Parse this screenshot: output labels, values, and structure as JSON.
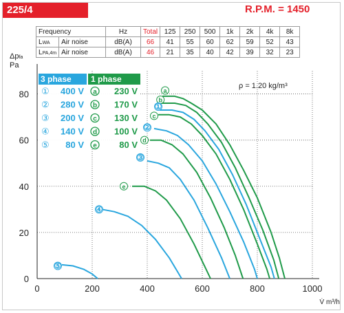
{
  "header": {
    "model": "225/4",
    "rpm": "R.P.M. = 1450"
  },
  "noise_table": {
    "header": [
      "Frequency",
      "Hz",
      "Total",
      "125",
      "250",
      "500",
      "1k",
      "2k",
      "4k",
      "8k"
    ],
    "rows": [
      {
        "label": "L",
        "sub": "WA",
        "desc": "Air noise",
        "unit": "dB(A)",
        "values": [
          "66",
          "41",
          "55",
          "60",
          "62",
          "59",
          "52",
          "43"
        ]
      },
      {
        "label": "L",
        "sub": "PA,4m",
        "desc": "Air noise",
        "unit": "dB(A)",
        "values": [
          "46",
          "21",
          "35",
          "40",
          "42",
          "39",
          "32",
          "23"
        ]
      }
    ]
  },
  "colors": {
    "blue": "#29a6de",
    "green": "#1f9a49",
    "red": "#e4202a",
    "grid": "#555555"
  },
  "chart_data": {
    "type": "line",
    "xlabel": "V̇ m³/h",
    "ylabel_top": "Δp",
    "ylabel_sub": "fa",
    "ylabel_unit": "Pa",
    "xlim": [
      0,
      1000
    ],
    "ylim": [
      0,
      90
    ],
    "xticks": [
      0,
      200,
      400,
      600,
      800,
      1000
    ],
    "yticks": [
      0,
      20,
      40,
      60,
      80
    ],
    "grid": true,
    "annotation": "ρ = 1.20 kg/m³",
    "legend": {
      "phase3": {
        "title": "3 phase",
        "items": [
          {
            "marker": "①",
            "voltage": "400 V"
          },
          {
            "marker": "②",
            "voltage": "280 V"
          },
          {
            "marker": "③",
            "voltage": "200 V"
          },
          {
            "marker": "④",
            "voltage": "140 V"
          },
          {
            "marker": "⑤",
            "voltage": "80 V"
          }
        ]
      },
      "phase1": {
        "title": "1 phase",
        "items": [
          {
            "marker": "a",
            "voltage": "230 V"
          },
          {
            "marker": "b",
            "voltage": "170 V"
          },
          {
            "marker": "c",
            "voltage": "130 V"
          },
          {
            "marker": "d",
            "voltage": "100 V"
          },
          {
            "marker": "e",
            "voltage": "80 V"
          }
        ]
      }
    },
    "series": [
      {
        "name": "a",
        "group": "1 phase",
        "points": [
          [
            455,
            79
          ],
          [
            500,
            79
          ],
          [
            530,
            78
          ],
          [
            560,
            76
          ],
          [
            600,
            73
          ],
          [
            650,
            67
          ],
          [
            700,
            58
          ],
          [
            750,
            47
          ],
          [
            800,
            35
          ],
          [
            850,
            20
          ],
          [
            880,
            9
          ],
          [
            900,
            0
          ]
        ]
      },
      {
        "name": "b",
        "group": "1 phase",
        "points": [
          [
            450,
            76
          ],
          [
            500,
            76
          ],
          [
            540,
            75
          ],
          [
            580,
            72
          ],
          [
            620,
            67
          ],
          [
            670,
            59
          ],
          [
            720,
            48
          ],
          [
            770,
            35
          ],
          [
            820,
            21
          ],
          [
            860,
            8
          ],
          [
            878,
            0
          ]
        ]
      },
      {
        "name": "1",
        "group": "3 phase",
        "points": [
          [
            445,
            73
          ],
          [
            490,
            73
          ],
          [
            530,
            72
          ],
          [
            570,
            69
          ],
          [
            610,
            64
          ],
          [
            660,
            56
          ],
          [
            710,
            45
          ],
          [
            760,
            32
          ],
          [
            810,
            17
          ],
          [
            850,
            5
          ],
          [
            862,
            0
          ]
        ]
      },
      {
        "name": "c",
        "group": "1 phase",
        "points": [
          [
            440,
            71
          ],
          [
            480,
            71
          ],
          [
            520,
            70
          ],
          [
            560,
            67
          ],
          [
            600,
            62
          ],
          [
            650,
            54
          ],
          [
            700,
            43
          ],
          [
            750,
            30
          ],
          [
            800,
            15
          ],
          [
            835,
            4
          ],
          [
            845,
            0
          ]
        ]
      },
      {
        "name": "2",
        "group": "3 phase",
        "points": [
          [
            425,
            65
          ],
          [
            470,
            64
          ],
          [
            510,
            62
          ],
          [
            550,
            58
          ],
          [
            600,
            51
          ],
          [
            650,
            41
          ],
          [
            700,
            29
          ],
          [
            750,
            16
          ],
          [
            790,
            4
          ],
          [
            800,
            0
          ]
        ]
      },
      {
        "name": "d",
        "group": "1 phase",
        "points": [
          [
            410,
            60
          ],
          [
            450,
            60
          ],
          [
            490,
            58
          ],
          [
            530,
            54
          ],
          [
            580,
            46
          ],
          [
            630,
            35
          ],
          [
            680,
            22
          ],
          [
            720,
            10
          ],
          [
            748,
            0
          ]
        ]
      },
      {
        "name": "3",
        "group": "3 phase",
        "points": [
          [
            400,
            51
          ],
          [
            440,
            50
          ],
          [
            480,
            48
          ],
          [
            520,
            43
          ],
          [
            570,
            34
          ],
          [
            620,
            22
          ],
          [
            670,
            9
          ],
          [
            700,
            0
          ]
        ]
      },
      {
        "name": "e",
        "group": "1 phase",
        "points": [
          [
            345,
            40
          ],
          [
            390,
            40
          ],
          [
            430,
            38
          ],
          [
            470,
            34
          ],
          [
            520,
            26
          ],
          [
            570,
            15
          ],
          [
            610,
            5
          ],
          [
            630,
            0
          ]
        ]
      },
      {
        "name": "4",
        "group": "3 phase",
        "points": [
          [
            235,
            30
          ],
          [
            280,
            29
          ],
          [
            330,
            27
          ],
          [
            380,
            23
          ],
          [
            430,
            17
          ],
          [
            480,
            9
          ],
          [
            510,
            3
          ],
          [
            525,
            0
          ]
        ]
      },
      {
        "name": "5",
        "group": "3 phase",
        "points": [
          [
            90,
            6
          ],
          [
            130,
            5.5
          ],
          [
            170,
            4
          ],
          [
            200,
            2
          ],
          [
            220,
            0
          ]
        ]
      }
    ],
    "curve_labels": [
      {
        "marker": "a",
        "x": 465,
        "y": 81.5,
        "color": "green"
      },
      {
        "marker": "b",
        "x": 448,
        "y": 77.5,
        "color": "green"
      },
      {
        "marker": "①",
        "x": 440,
        "y": 74.5,
        "color": "blue"
      },
      {
        "marker": "c",
        "x": 425,
        "y": 70.5,
        "color": "green"
      },
      {
        "marker": "②",
        "x": 400,
        "y": 65.5,
        "color": "blue"
      },
      {
        "marker": "d",
        "x": 390,
        "y": 60,
        "color": "green"
      },
      {
        "marker": "③",
        "x": 375,
        "y": 52.5,
        "color": "blue"
      },
      {
        "marker": "e",
        "x": 315,
        "y": 40,
        "color": "green"
      },
      {
        "marker": "④",
        "x": 225,
        "y": 30,
        "color": "blue"
      },
      {
        "marker": "⑤",
        "x": 75,
        "y": 5.5,
        "color": "blue"
      }
    ]
  }
}
